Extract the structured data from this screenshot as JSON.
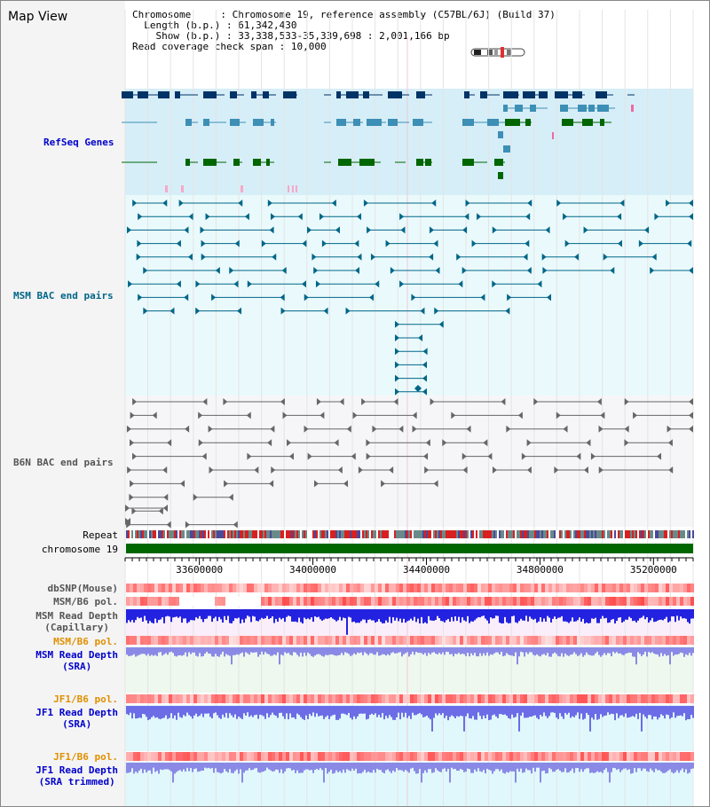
{
  "title": "Map View",
  "header": {
    "chromosome_key": "Chromosome",
    "chromosome_value": "Chromosome 19, reference assembly (C57BL/6J) (Build 37)",
    "length_key": "Length (b.p.)",
    "length_value": "61,342,430",
    "show_key": "Show (b.p.)",
    "show_value": "33,338,533-35,339,698 : 2,001,166 bp",
    "coverage_key": "Read coverage check span",
    "coverage_value": "10,000"
  },
  "tracks": {
    "refseq": "RefSeq Genes",
    "msm_bac": "MSM BAC end pairs",
    "b6n_bac": "B6N BAC end pairs",
    "repeat": "Repeat",
    "chromosome": "chromosome 19",
    "dbsnp": "dbSNP(Mouse)",
    "msm_b6_pol_1": "MSM/B6 pol.",
    "msm_read_depth_cap_1": "MSM Read Depth",
    "msm_read_depth_cap_2": "(Capillary)",
    "msm_b6_pol_2": "MSM/B6 pol.",
    "msm_read_depth_sra_1": "MSM Read Depth",
    "msm_read_depth_sra_2": "(SRA)",
    "jf1_b6_pol_1": "JF1/B6 pol.",
    "jf1_read_depth_sra_1": "JF1 Read Depth",
    "jf1_read_depth_sra_2": "(SRA)",
    "jf1_b6_pol_2": "JF1/B6 pol.",
    "jf1_read_depth_trim_1": "JF1 Read Depth",
    "jf1_read_depth_trim_2": "(SRA trimmed)"
  },
  "axis": {
    "ticks": [
      "33600000",
      "34000000",
      "34400000",
      "34800000",
      "35200000"
    ],
    "tick_values": [
      33600000,
      34000000,
      34400000,
      34800000,
      35200000
    ],
    "range": [
      33338533,
      35339698
    ]
  },
  "colors": {
    "label_blue": "#0000cc",
    "label_teal": "#006688",
    "label_gray": "#555555",
    "label_orange": "#e09000",
    "refseq_bg": "#d6eef8",
    "msm_bg": "#eafafc",
    "b6n_bg": "#f6f6f8",
    "gene_dark": "#003366",
    "gene_mid": "#3d8fb5",
    "gene_green": "#006600",
    "chrom_green": "#006600"
  }
}
